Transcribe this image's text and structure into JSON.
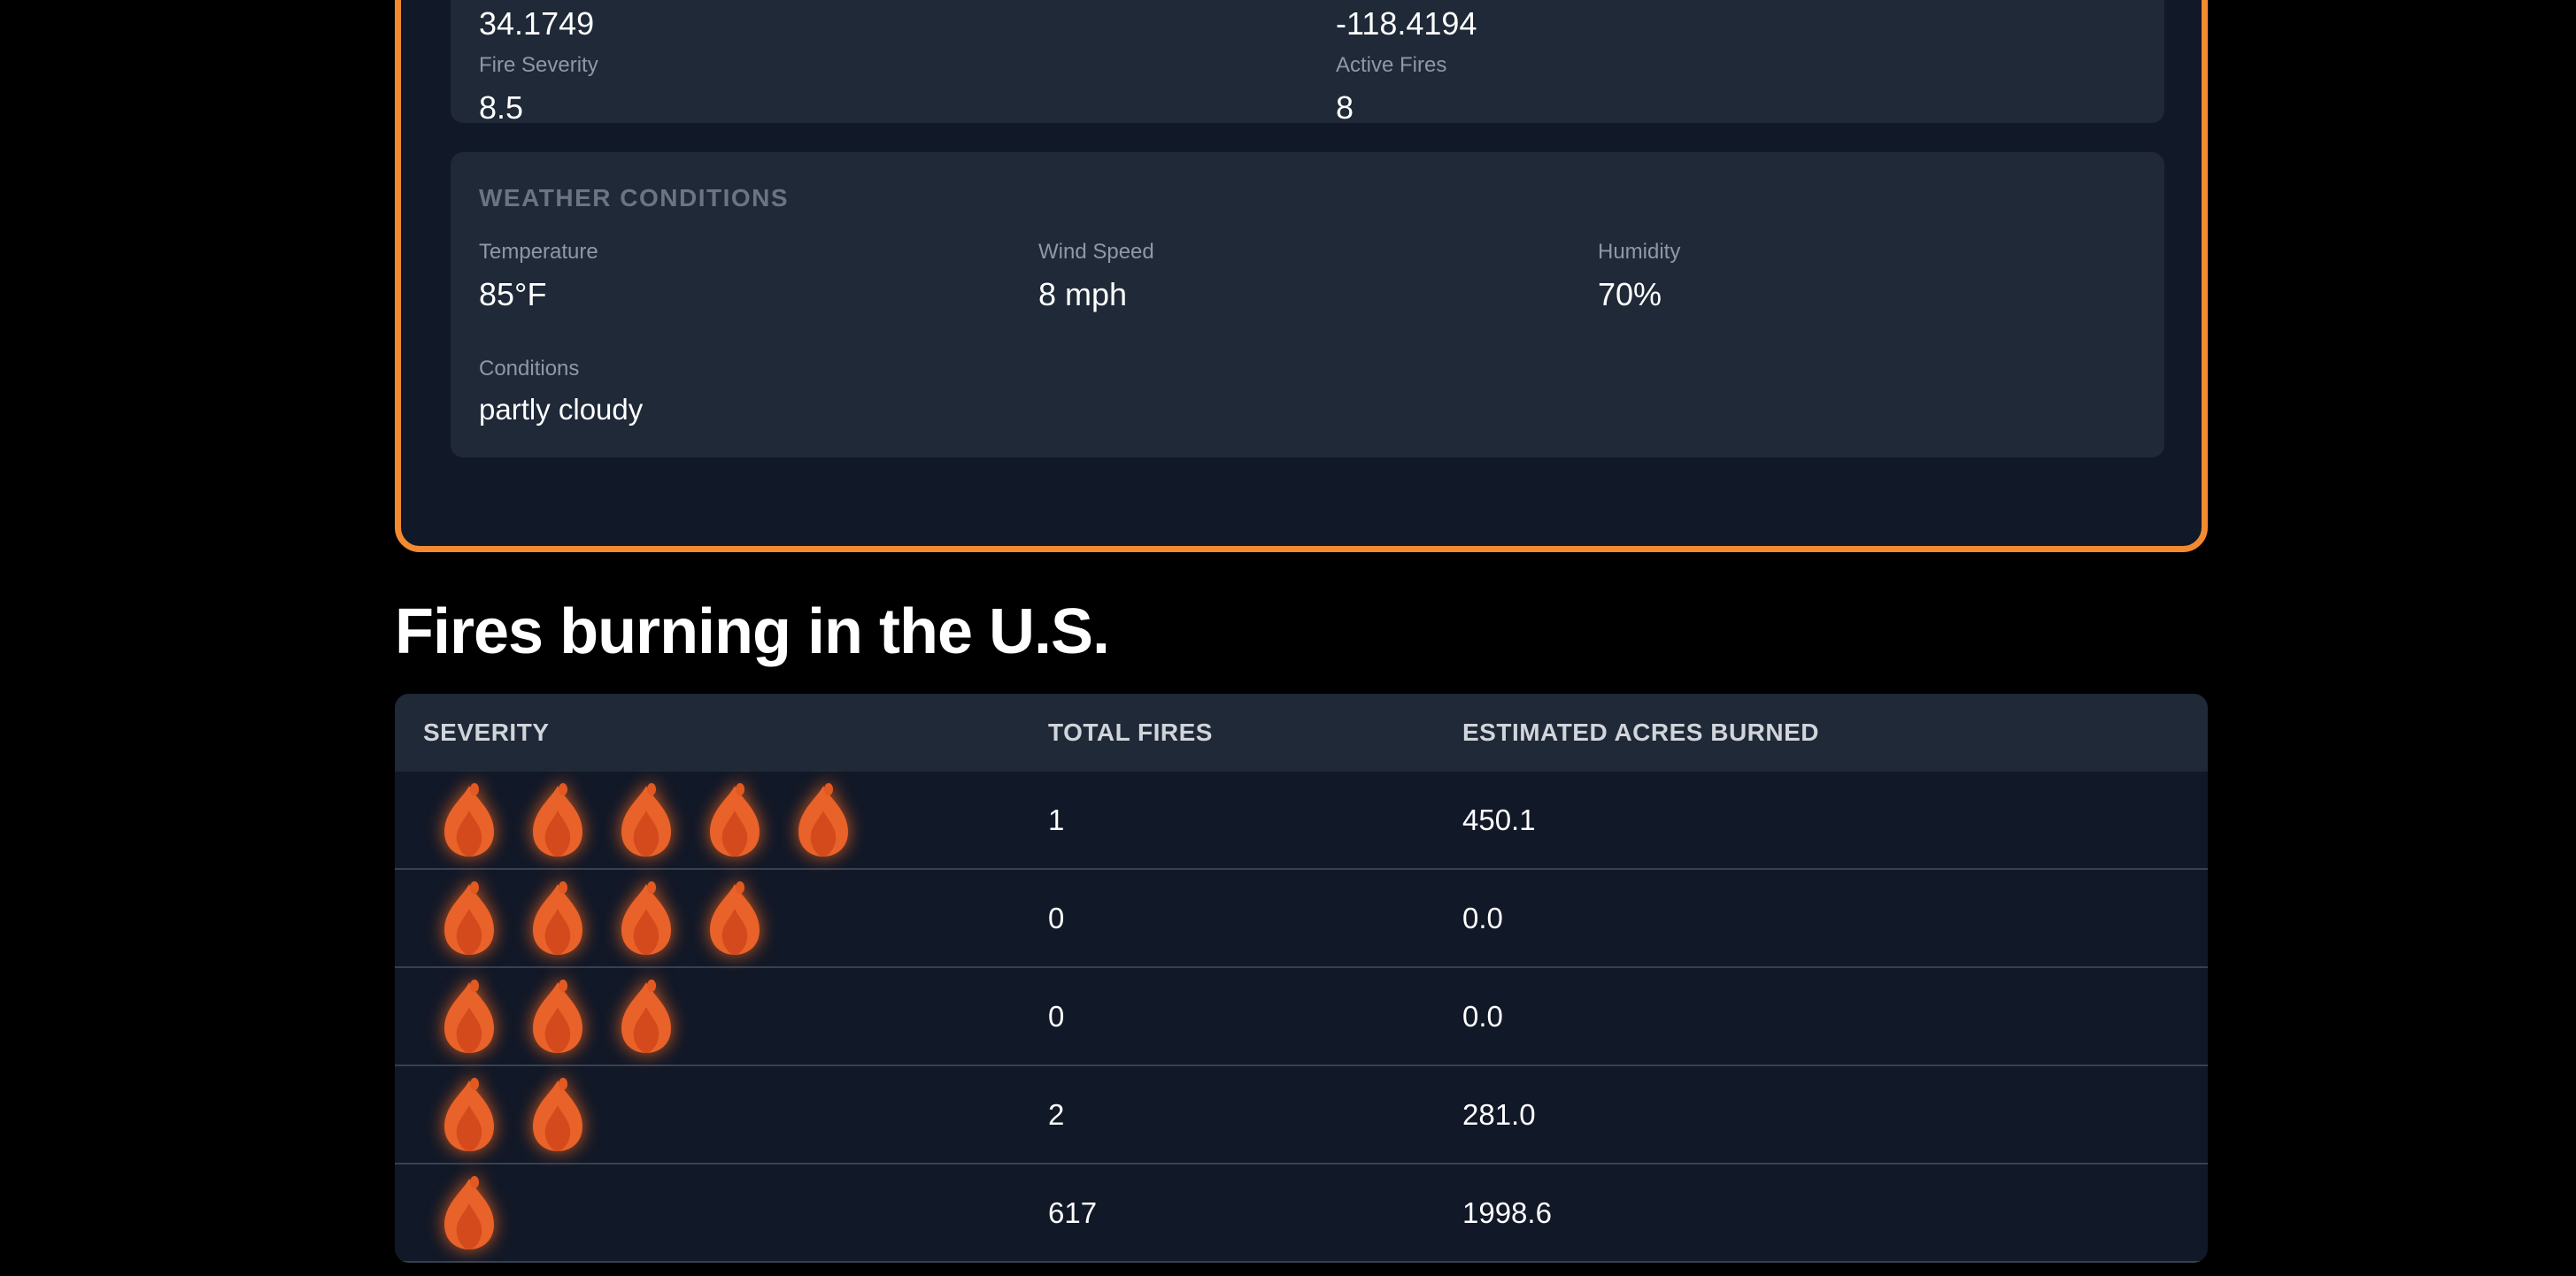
{
  "location_card": {
    "latitude": {
      "value": "34.1749"
    },
    "longitude": {
      "value": "-118.4194"
    },
    "fire_severity": {
      "label": "Fire Severity",
      "value": "8.5"
    },
    "active_fires": {
      "label": "Active Fires",
      "value": "8"
    }
  },
  "weather": {
    "heading": "WEATHER CONDITIONS",
    "temperature": {
      "label": "Temperature",
      "value": "85°F"
    },
    "wind_speed": {
      "label": "Wind Speed",
      "value": "8 mph"
    },
    "humidity": {
      "label": "Humidity",
      "value": "70%"
    },
    "conditions": {
      "label": "Conditions",
      "value": "partly cloudy"
    }
  },
  "fires_section": {
    "title": "Fires burning in the U.S.",
    "columns": [
      "SEVERITY",
      "TOTAL FIRES",
      "ESTIMATED ACRES BURNED"
    ],
    "rows": [
      {
        "severity_level": 5,
        "total_fires": "1",
        "acres_burned": "450.1"
      },
      {
        "severity_level": 4,
        "total_fires": "0",
        "acres_burned": "0.0"
      },
      {
        "severity_level": 3,
        "total_fires": "0",
        "acres_burned": "0.0"
      },
      {
        "severity_level": 2,
        "total_fires": "2",
        "acres_burned": "281.0"
      },
      {
        "severity_level": 1,
        "total_fires": "617",
        "acres_burned": "1998.6"
      }
    ]
  },
  "colors": {
    "accent_border": "#f38a30",
    "flame": "#e8622a",
    "card_background": "#111827",
    "panel_background": "#1f2937"
  },
  "icons": {
    "severity": "flame-icon"
  }
}
